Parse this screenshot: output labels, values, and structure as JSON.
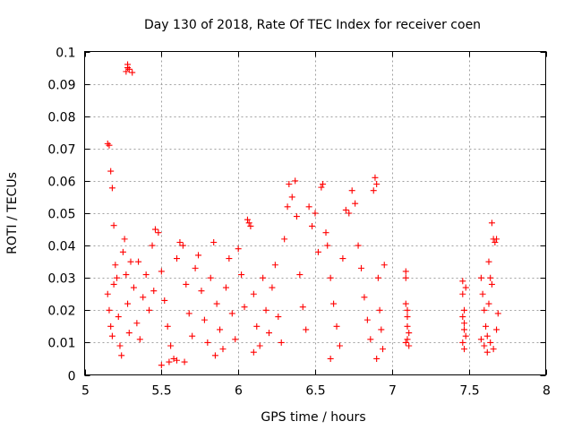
{
  "chart_data": {
    "type": "scatter",
    "title": "Day 130 of 2018, Rate Of TEC Index for receiver coen",
    "xlabel": "GPS time / hours",
    "ylabel": "ROTI / TECUs",
    "xlim": [
      5,
      8
    ],
    "ylim": [
      0,
      0.1
    ],
    "grid": true,
    "marker": "plus",
    "color": "#ff0000",
    "x_ticks": [
      {
        "value": 5,
        "label": "5"
      },
      {
        "value": 5.5,
        "label": "5.5"
      },
      {
        "value": 6,
        "label": "6"
      },
      {
        "value": 6.5,
        "label": "6.5"
      },
      {
        "value": 7,
        "label": "7"
      },
      {
        "value": 7.5,
        "label": "7.5"
      },
      {
        "value": 8,
        "label": "8"
      }
    ],
    "y_ticks": [
      {
        "value": 0,
        "label": "0"
      },
      {
        "value": 0.01,
        "label": "0.01"
      },
      {
        "value": 0.02,
        "label": "0.02"
      },
      {
        "value": 0.03,
        "label": "0.03"
      },
      {
        "value": 0.04,
        "label": "0.04"
      },
      {
        "value": 0.05,
        "label": "0.05"
      },
      {
        "value": 0.06,
        "label": "0.06"
      },
      {
        "value": 0.07,
        "label": "0.07"
      },
      {
        "value": 0.08,
        "label": "0.08"
      },
      {
        "value": 0.09,
        "label": "0.09"
      },
      {
        "value": 0.1,
        "label": "0.1"
      }
    ],
    "points": [
      [
        5.15,
        0.0715
      ],
      [
        5.16,
        0.071
      ],
      [
        5.17,
        0.063
      ],
      [
        5.18,
        0.0578
      ],
      [
        5.19,
        0.0462
      ],
      [
        5.28,
        0.096
      ],
      [
        5.29,
        0.0945
      ],
      [
        5.27,
        0.0938
      ],
      [
        5.31,
        0.0935
      ],
      [
        5.28,
        0.095
      ],
      [
        5.15,
        0.025
      ],
      [
        5.16,
        0.02
      ],
      [
        5.17,
        0.015
      ],
      [
        5.18,
        0.012
      ],
      [
        5.19,
        0.028
      ],
      [
        5.2,
        0.034
      ],
      [
        5.21,
        0.03
      ],
      [
        5.22,
        0.018
      ],
      [
        5.23,
        0.009
      ],
      [
        5.24,
        0.006
      ],
      [
        5.25,
        0.038
      ],
      [
        5.26,
        0.042
      ],
      [
        5.27,
        0.031
      ],
      [
        5.28,
        0.022
      ],
      [
        5.29,
        0.013
      ],
      [
        5.3,
        0.035
      ],
      [
        5.32,
        0.027
      ],
      [
        5.34,
        0.016
      ],
      [
        5.36,
        0.011
      ],
      [
        5.38,
        0.024
      ],
      [
        5.4,
        0.031
      ],
      [
        5.42,
        0.02
      ],
      [
        5.44,
        0.04
      ],
      [
        5.46,
        0.045
      ],
      [
        5.48,
        0.044
      ],
      [
        5.5,
        0.032
      ],
      [
        5.52,
        0.023
      ],
      [
        5.54,
        0.015
      ],
      [
        5.56,
        0.009
      ],
      [
        5.58,
        0.005
      ],
      [
        5.6,
        0.036
      ],
      [
        5.62,
        0.041
      ],
      [
        5.64,
        0.04
      ],
      [
        5.66,
        0.028
      ],
      [
        5.68,
        0.019
      ],
      [
        5.7,
        0.012
      ],
      [
        5.72,
        0.033
      ],
      [
        5.74,
        0.037
      ],
      [
        5.76,
        0.026
      ],
      [
        5.78,
        0.017
      ],
      [
        5.8,
        0.01
      ],
      [
        5.82,
        0.03
      ],
      [
        5.84,
        0.041
      ],
      [
        5.86,
        0.022
      ],
      [
        5.88,
        0.014
      ],
      [
        5.9,
        0.008
      ],
      [
        5.92,
        0.027
      ],
      [
        5.94,
        0.036
      ],
      [
        5.96,
        0.019
      ],
      [
        5.98,
        0.011
      ],
      [
        6.0,
        0.039
      ],
      [
        6.02,
        0.031
      ],
      [
        6.04,
        0.021
      ],
      [
        6.06,
        0.048
      ],
      [
        6.07,
        0.047
      ],
      [
        6.08,
        0.046
      ],
      [
        6.1,
        0.025
      ],
      [
        6.12,
        0.015
      ],
      [
        6.14,
        0.009
      ],
      [
        6.16,
        0.03
      ],
      [
        6.18,
        0.02
      ],
      [
        6.2,
        0.013
      ],
      [
        6.22,
        0.027
      ],
      [
        6.24,
        0.034
      ],
      [
        6.26,
        0.018
      ],
      [
        6.28,
        0.01
      ],
      [
        6.3,
        0.042
      ],
      [
        6.32,
        0.052
      ],
      [
        6.33,
        0.059
      ],
      [
        6.35,
        0.055
      ],
      [
        6.37,
        0.06
      ],
      [
        6.38,
        0.049
      ],
      [
        6.4,
        0.031
      ],
      [
        6.42,
        0.021
      ],
      [
        6.44,
        0.014
      ],
      [
        6.46,
        0.052
      ],
      [
        6.48,
        0.046
      ],
      [
        6.5,
        0.05
      ],
      [
        6.52,
        0.038
      ],
      [
        6.54,
        0.058
      ],
      [
        6.55,
        0.059
      ],
      [
        6.57,
        0.044
      ],
      [
        6.58,
        0.04
      ],
      [
        6.6,
        0.03
      ],
      [
        6.62,
        0.022
      ],
      [
        6.64,
        0.015
      ],
      [
        6.66,
        0.009
      ],
      [
        6.68,
        0.036
      ],
      [
        6.7,
        0.051
      ],
      [
        6.72,
        0.05
      ],
      [
        6.74,
        0.057
      ],
      [
        6.76,
        0.053
      ],
      [
        6.78,
        0.04
      ],
      [
        6.8,
        0.033
      ],
      [
        6.82,
        0.024
      ],
      [
        6.84,
        0.017
      ],
      [
        6.86,
        0.011
      ],
      [
        6.88,
        0.057
      ],
      [
        6.89,
        0.061
      ],
      [
        6.9,
        0.059
      ],
      [
        6.91,
        0.03
      ],
      [
        6.92,
        0.02
      ],
      [
        6.93,
        0.014
      ],
      [
        6.94,
        0.008
      ],
      [
        6.95,
        0.034
      ],
      [
        7.09,
        0.032
      ],
      [
        7.09,
        0.022
      ],
      [
        7.1,
        0.015
      ],
      [
        7.1,
        0.011
      ],
      [
        7.11,
        0.009
      ],
      [
        7.09,
        0.03
      ],
      [
        7.1,
        0.018
      ],
      [
        7.11,
        0.013
      ],
      [
        7.1,
        0.02
      ],
      [
        7.09,
        0.01
      ],
      [
        7.46,
        0.029
      ],
      [
        7.46,
        0.025
      ],
      [
        7.47,
        0.02
      ],
      [
        7.47,
        0.016
      ],
      [
        7.48,
        0.012
      ],
      [
        7.46,
        0.01
      ],
      [
        7.47,
        0.008
      ],
      [
        7.48,
        0.027
      ],
      [
        7.47,
        0.014
      ],
      [
        7.46,
        0.018
      ],
      [
        7.58,
        0.03
      ],
      [
        7.59,
        0.025
      ],
      [
        7.6,
        0.02
      ],
      [
        7.61,
        0.015
      ],
      [
        7.62,
        0.012
      ],
      [
        7.63,
        0.035
      ],
      [
        7.64,
        0.03
      ],
      [
        7.65,
        0.047
      ],
      [
        7.66,
        0.042
      ],
      [
        7.67,
        0.041
      ],
      [
        7.68,
        0.042
      ],
      [
        7.69,
        0.019
      ],
      [
        7.58,
        0.011
      ],
      [
        7.6,
        0.009
      ],
      [
        7.62,
        0.007
      ],
      [
        7.64,
        0.01
      ],
      [
        7.66,
        0.008
      ],
      [
        7.68,
        0.014
      ],
      [
        7.63,
        0.022
      ],
      [
        7.65,
        0.028
      ],
      [
        5.5,
        0.003
      ],
      [
        5.55,
        0.004
      ],
      [
        5.6,
        0.0045
      ],
      [
        5.65,
        0.004
      ],
      [
        5.85,
        0.006
      ],
      [
        6.1,
        0.007
      ],
      [
        6.6,
        0.005
      ],
      [
        6.9,
        0.005
      ],
      [
        5.45,
        0.026
      ],
      [
        5.35,
        0.035
      ]
    ]
  }
}
